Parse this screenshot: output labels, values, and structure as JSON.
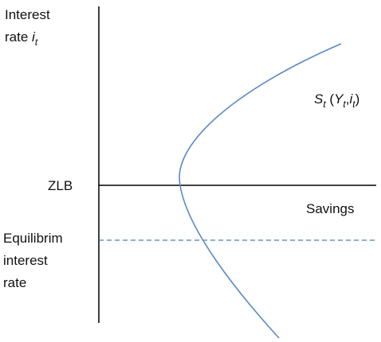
{
  "y_axis_label": {
    "line1": "Interest",
    "line2": [
      {
        "text": "rate ",
        "style": "plain"
      },
      {
        "text": "i",
        "style": "italic"
      },
      {
        "text": "t",
        "style": "sub"
      }
    ]
  },
  "curve_label": [
    {
      "text": "S",
      "style": "italic"
    },
    {
      "text": "t",
      "style": "sub"
    },
    {
      "text": " (",
      "style": "plain"
    },
    {
      "text": "Y",
      "style": "italic"
    },
    {
      "text": "t",
      "style": "sub"
    },
    {
      "text": ",",
      "style": "plain"
    },
    {
      "text": "i",
      "style": "italic"
    },
    {
      "text": "t",
      "style": "sub"
    },
    {
      "text": ")",
      "style": "plain"
    }
  ],
  "zlb_label": "ZLB",
  "x_axis_label": "Savings",
  "equilibrium_label": [
    "Equilibrim",
    "interest",
    "rate"
  ]
}
